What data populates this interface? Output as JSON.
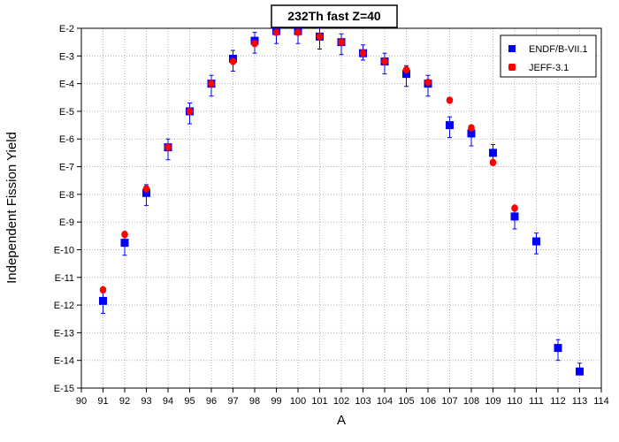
{
  "chart_data": {
    "type": "scatter",
    "title": "232Th fast Z=40",
    "xlabel": "A",
    "ylabel": "Independent Fission Yield",
    "xlim": [
      90,
      114
    ],
    "ylim": [
      -15,
      -2
    ],
    "y_scale": "log",
    "x_ticks": [
      "90",
      "91",
      "92",
      "93",
      "94",
      "95",
      "96",
      "97",
      "98",
      "99",
      "100",
      "101",
      "102",
      "103",
      "104",
      "105",
      "106",
      "107",
      "108",
      "109",
      "110",
      "111",
      "112",
      "113",
      "114"
    ],
    "y_ticks": [
      "E-2",
      "E-3",
      "E-4",
      "E-5",
      "E-6",
      "E-7",
      "E-8",
      "E-9",
      "E-10",
      "E-11",
      "E-12",
      "E-13",
      "E-14",
      "E-15"
    ],
    "grid": true,
    "legend_position": "top-right",
    "series": [
      {
        "name": "ENDF/B-VII.1",
        "color": "#0000ff",
        "marker": "square",
        "points": [
          {
            "x": 91,
            "y": -11.85,
            "err_up": 0.3,
            "err_down": 0.45
          },
          {
            "x": 92,
            "y": -9.75,
            "err_up": 0.3,
            "err_down": 0.45
          },
          {
            "x": 93,
            "y": -7.95,
            "err_up": 0.3,
            "err_down": 0.45
          },
          {
            "x": 94,
            "y": -6.3,
            "err_up": 0.3,
            "err_down": 0.45
          },
          {
            "x": 95,
            "y": -5.0,
            "err_up": 0.3,
            "err_down": 0.45
          },
          {
            "x": 96,
            "y": -4.0,
            "err_up": 0.3,
            "err_down": 0.45
          },
          {
            "x": 97,
            "y": -3.1,
            "err_up": 0.3,
            "err_down": 0.45
          },
          {
            "x": 98,
            "y": -2.45,
            "err_up": 0.3,
            "err_down": 0.45
          },
          {
            "x": 99,
            "y": -2.1,
            "err_up": 0.2,
            "err_down": 0.45
          },
          {
            "x": 100,
            "y": -2.1,
            "err_up": 0.2,
            "err_down": 0.45
          },
          {
            "x": 101,
            "y": -2.3,
            "err_up": 0.3,
            "err_down": 0.45
          },
          {
            "x": 102,
            "y": -2.5,
            "err_up": 0.3,
            "err_down": 0.45
          },
          {
            "x": 103,
            "y": -2.9,
            "err_up": 0.3,
            "err_down": 0.25
          },
          {
            "x": 104,
            "y": -3.2,
            "err_up": 0.3,
            "err_down": 0.45
          },
          {
            "x": 105,
            "y": -3.65,
            "err_up": 0.3,
            "err_down": 0.45
          },
          {
            "x": 106,
            "y": -4.0,
            "err_up": 0.3,
            "err_down": 0.45
          },
          {
            "x": 107,
            "y": -5.5,
            "err_up": 0.3,
            "err_down": 0.45
          },
          {
            "x": 108,
            "y": -5.8,
            "err_up": 0.3,
            "err_down": 0.45
          },
          {
            "x": 109,
            "y": -6.5,
            "err_up": 0.3,
            "err_down": 0.45
          },
          {
            "x": 110,
            "y": -8.8,
            "err_up": 0.3,
            "err_down": 0.45
          },
          {
            "x": 111,
            "y": -9.7,
            "err_up": 0.3,
            "err_down": 0.45
          },
          {
            "x": 112,
            "y": -13.55,
            "err_up": 0.3,
            "err_down": 0.45
          },
          {
            "x": 113,
            "y": -14.4,
            "err_up": 0.3,
            "err_down": 0.0
          }
        ]
      },
      {
        "name": "JEFF-3.1",
        "color": "#ff0000",
        "marker": "circle",
        "points": [
          {
            "x": 91,
            "y": -11.45
          },
          {
            "x": 92,
            "y": -9.45
          },
          {
            "x": 93,
            "y": -7.8
          },
          {
            "x": 94,
            "y": -6.3
          },
          {
            "x": 95,
            "y": -5.0
          },
          {
            "x": 96,
            "y": -4.0
          },
          {
            "x": 97,
            "y": -3.2
          },
          {
            "x": 98,
            "y": -2.55
          },
          {
            "x": 99,
            "y": -2.15
          },
          {
            "x": 100,
            "y": -2.15
          },
          {
            "x": 101,
            "y": -2.3
          },
          {
            "x": 102,
            "y": -2.5
          },
          {
            "x": 103,
            "y": -2.9
          },
          {
            "x": 104,
            "y": -3.2
          },
          {
            "x": 105,
            "y": -3.5
          },
          {
            "x": 106,
            "y": -3.95
          },
          {
            "x": 107,
            "y": -4.6
          },
          {
            "x": 108,
            "y": -5.6
          },
          {
            "x": 109,
            "y": -6.85
          },
          {
            "x": 110,
            "y": -8.5
          }
        ]
      }
    ]
  }
}
